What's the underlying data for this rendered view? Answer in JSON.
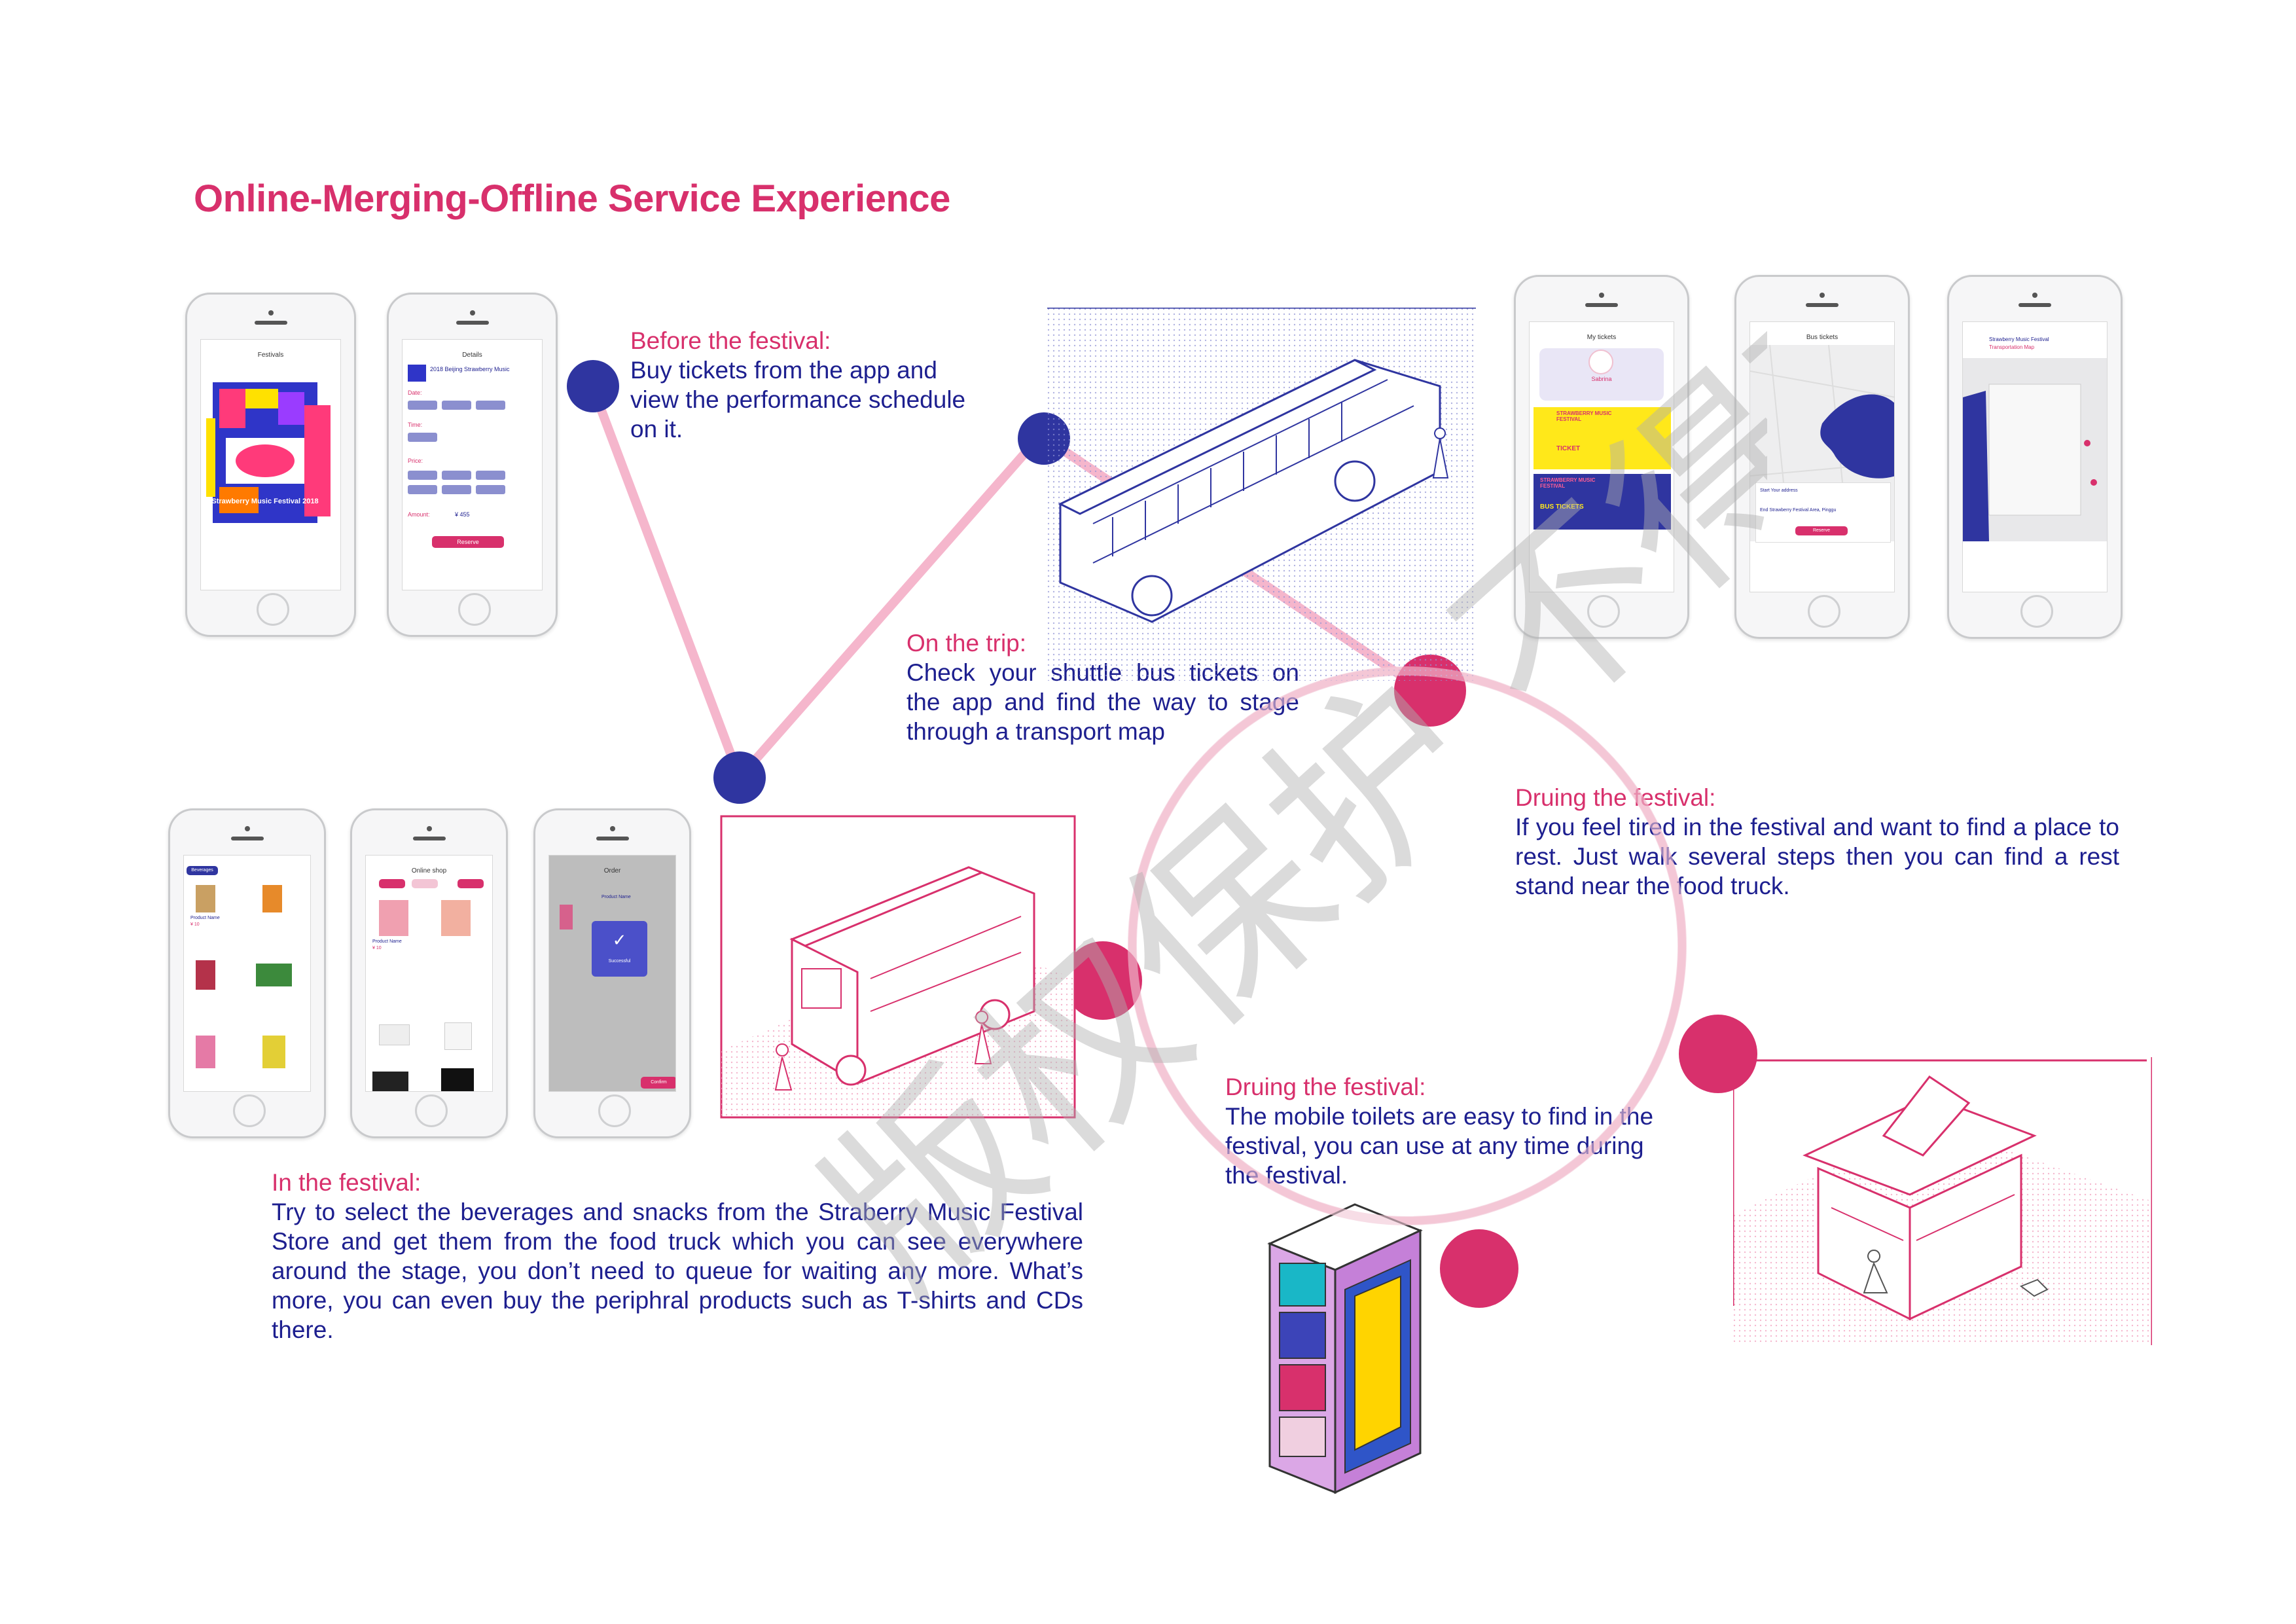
{
  "title": "Online-Merging-Offline Service Experience",
  "colors": {
    "accent_pink": "#d8306c",
    "accent_blue": "#2f35a0",
    "text_blue": "#1d1f8f"
  },
  "captions": {
    "before": {
      "head": "Before the festival:",
      "body": "Buy tickets from the app and view the performance schedule on it."
    },
    "trip": {
      "head": "On the  trip:",
      "body": "Check your shuttle bus tickets on the app and find the way to stage through a transport map"
    },
    "during_rest": {
      "head": "Druing the festival:",
      "body": "If you feel tired in the festival and want to find a place to rest. Just walk several steps then you can find a rest stand near the food truck."
    },
    "during_toilet": {
      "head": "Druing the festival:",
      "body": "The mobile toilets are easy to find in the festival, you can use at any time during the festival."
    },
    "in_festival": {
      "head": "In the festival:",
      "body": "Try to select the beverages and snacks from the Straberry Music Festival Store and get them from the food truck which you can see everywhere around the stage, you don’t need to queue for waiting any more. What’s more, you can even buy the periphral products such as T-shirts and CDs there."
    }
  },
  "phones": {
    "festivals": {
      "title": "Festivals",
      "poster_text": "Strawberry Music Festival 2018"
    },
    "details": {
      "title": "Details",
      "event": "2018 Beijing Strawberry Music",
      "date_label": "Date:",
      "time_label": "Time:",
      "price_label": "Price:",
      "amount_label": "Amount:",
      "amount_value": "¥ 455",
      "reserve": "Reserve"
    },
    "my_tickets": {
      "title": "My tickets",
      "user": "Sabrina",
      "ticket1": "STRAWBERRY MUSIC FESTIVAL",
      "ticket1_sub": "TICKET",
      "ticket2": "STRAWBERRY MUSIC FESTIVAL",
      "ticket2_sub": "BUS TICKETS"
    },
    "bus_tickets": {
      "title": "Bus tickets",
      "start": "Start  Your address",
      "end": "End  Strawberry Festival Area, Pinggu",
      "reserve": "Reserve"
    },
    "transport_map": {
      "title": "Strawberry Music Festival",
      "subtitle": "Transportation Map"
    },
    "beverages": {
      "tag": "Beverages",
      "product": "Product Name",
      "price": "¥ 10"
    },
    "online_shop": {
      "title": "Online shop",
      "product": "Product Name",
      "price": "¥ 10"
    },
    "order": {
      "title": "Order",
      "product": "Product Name",
      "status": "Successful",
      "confirm": "Confirm"
    }
  },
  "watermark_text": "版权保护 不得商用"
}
